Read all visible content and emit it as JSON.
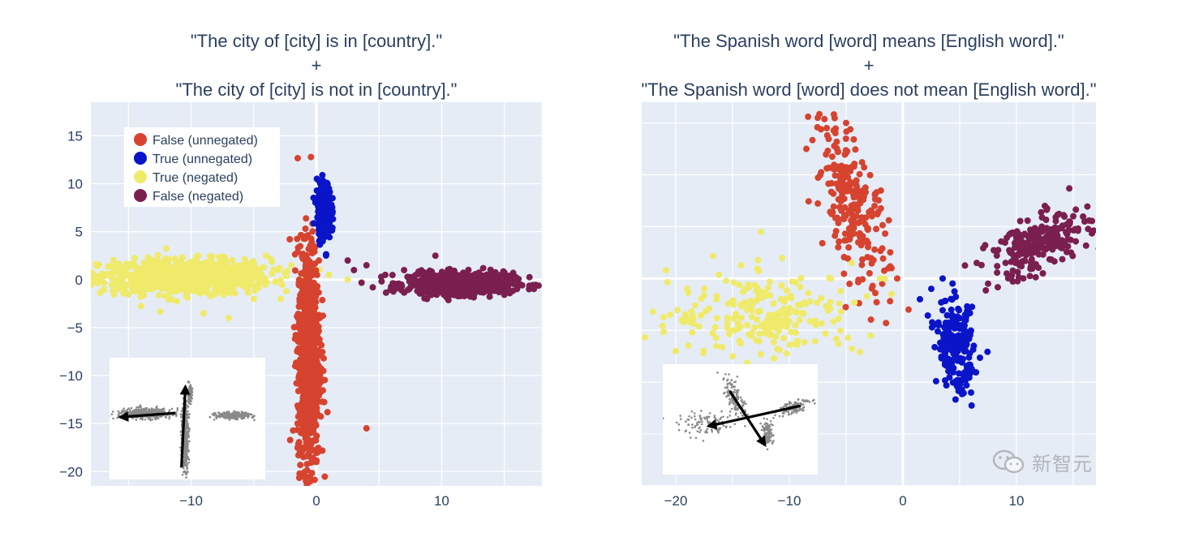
{
  "watermark": {
    "text": "新智元",
    "icon": "wechat-icon"
  },
  "colors": {
    "false_unnegated": "#d6432f",
    "true_unnegated": "#0a14c8",
    "true_negated": "#f0ea6a",
    "false_negated": "#7a1f4f",
    "plot_bg": "#e5ecf6",
    "inset_points": "#8a8a8a"
  },
  "chart_data": [
    {
      "type": "scatter",
      "title_lines": [
        "\"The city of [city] is in [country].\"",
        "+",
        "\"The city of [city] is not in [country].\""
      ],
      "xlim": [
        -18,
        18
      ],
      "ylim": [
        -21.5,
        18.5
      ],
      "xticks": [
        -10,
        0,
        10
      ],
      "yticks": [
        15,
        10,
        5,
        0,
        -5,
        -10,
        -15,
        -20
      ],
      "xtick_labels": [
        "−10",
        "0",
        "10"
      ],
      "ytick_labels": [
        "15",
        "10",
        "5",
        "0",
        "−5",
        "−10",
        "−15",
        "−20"
      ],
      "grid": true,
      "legend": {
        "position": "top-left",
        "entries": [
          {
            "label": "False (unnegated)",
            "key": "false_unnegated"
          },
          {
            "label": "True (unnegated)",
            "key": "true_unnegated"
          },
          {
            "label": "True (negated)",
            "key": "true_negated"
          },
          {
            "label": "False (negated)",
            "key": "false_negated"
          }
        ]
      },
      "series": [
        {
          "key": "true_negated",
          "count": 900,
          "center": [
            -10.5,
            0.3
          ],
          "spread": [
            3.4,
            0.9
          ],
          "stragglers": [
            [
              -4,
              2.5
            ],
            [
              -2,
              1.5
            ],
            [
              1,
              0.5
            ],
            [
              2.5,
              0
            ],
            [
              -5,
              -2
            ],
            [
              -7,
              -4
            ],
            [
              -9,
              -3.5
            ]
          ]
        },
        {
          "key": "false_negated",
          "count": 700,
          "center": [
            11.5,
            -0.4
          ],
          "spread": [
            2.1,
            0.55
          ],
          "stragglers": [
            [
              2.5,
              2
            ],
            [
              4,
              1.5
            ],
            [
              5.5,
              0.5
            ],
            [
              7,
              1
            ],
            [
              9.5,
              2.5
            ],
            [
              4.5,
              -0.8
            ],
            [
              3,
              1
            ]
          ]
        },
        {
          "key": "false_unnegated",
          "count": 900,
          "center": [
            -0.6,
            -8
          ],
          "spread": [
            0.45,
            5.8
          ],
          "stragglers": [
            [
              -0.2,
              3.5
            ],
            [
              0.2,
              2
            ],
            [
              -0.8,
              -17
            ],
            [
              0,
              -19
            ],
            [
              4,
              -15.5
            ],
            [
              -1.5,
              -15
            ]
          ]
        },
        {
          "key": "true_unnegated",
          "count": 260,
          "center": [
            0.6,
            7.2
          ],
          "spread": [
            0.28,
            1.5
          ],
          "stragglers": [
            [
              0.5,
              4
            ],
            [
              1,
              9.5
            ]
          ]
        }
      ],
      "inset": {
        "description_free": true,
        "arrows": [
          [
            [
              -6.5,
              -14
            ],
            [
              -14.5,
              -13.2
            ]
          ],
          [
            [
              -10.8,
              -17.8
            ],
            [
              -10.2,
              -11
            ]
          ]
        ]
      }
    },
    {
      "type": "scatter",
      "title_lines": [
        "\"The Spanish word [word] means  [English word].\"",
        "+",
        "\"The Spanish word [word] does not mean [English word].\""
      ],
      "xlim": [
        -23,
        17
      ],
      "ylim": [
        -20,
        17
      ],
      "xticks": [
        -20,
        -10,
        0,
        10
      ],
      "yticks": [],
      "xtick_labels": [
        "−20",
        "−10",
        "0",
        "10"
      ],
      "grid": true,
      "series": [
        {
          "key": "false_unnegated",
          "count": 230,
          "center": [
            -4.5,
            7
          ],
          "spread": [
            1.6,
            3.2
          ],
          "tilt": -1.6,
          "stragglers": [
            [
              -7.5,
              15.5
            ],
            [
              -5,
              15
            ],
            [
              -8.5,
              12.5
            ],
            [
              -1,
              1
            ],
            [
              -0.5,
              0
            ],
            [
              0.5,
              -3
            ]
          ]
        },
        {
          "key": "true_negated",
          "count": 220,
          "center": [
            -12,
            -3.5
          ],
          "spread": [
            4.2,
            2.0
          ],
          "stragglers": [
            [
              -20.5,
              -3.5
            ],
            [
              -19,
              -1
            ],
            [
              -12.5,
              4.5
            ],
            [
              -4.5,
              1.5
            ],
            [
              -2,
              0
            ],
            [
              -1,
              -1.5
            ],
            [
              -15,
              -7.5
            ],
            [
              -20,
              -7
            ]
          ]
        },
        {
          "key": "true_unnegated",
          "count": 210,
          "center": [
            4.6,
            -6.5
          ],
          "spread": [
            0.8,
            2.1
          ],
          "tilt": -0.45,
          "stragglers": [
            [
              1.5,
              -2
            ],
            [
              2.5,
              -1
            ],
            [
              3.5,
              0
            ],
            [
              6,
              -11
            ]
          ]
        },
        {
          "key": "false_negated",
          "count": 230,
          "center": [
            12,
            3.2
          ],
          "spread": [
            2.2,
            1.3
          ],
          "tilt": 0.45,
          "stragglers": [
            [
              6.5,
              1.5
            ],
            [
              7.5,
              -0.5
            ],
            [
              15,
              6
            ],
            [
              12.5,
              7
            ]
          ]
        }
      ],
      "inset": {
        "arrows": [
          [
            [
              -6,
              -14
            ],
            [
              -13.5,
              -16.5
            ]
          ],
          [
            [
              -11.8,
              -10
            ],
            [
              -8.5,
              -18.5
            ]
          ]
        ]
      }
    }
  ]
}
